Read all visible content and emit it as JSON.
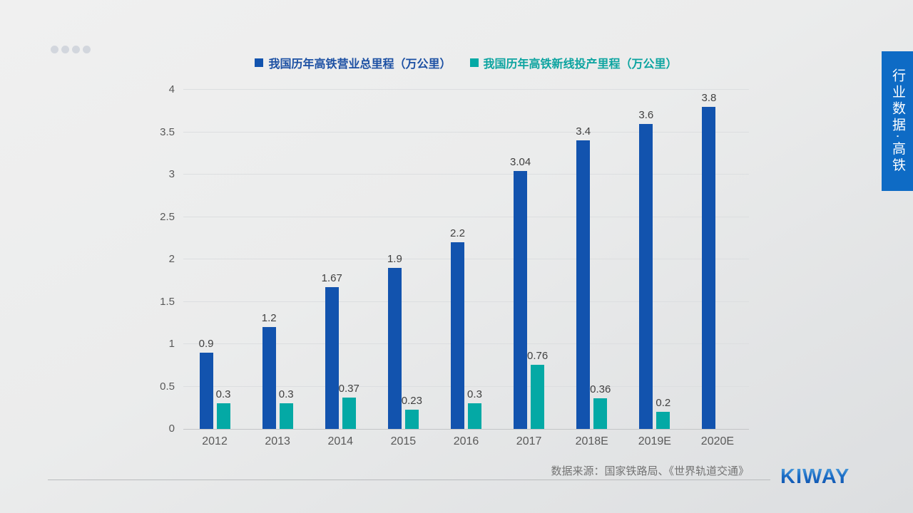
{
  "banner": {
    "text": "行业数据·高铁"
  },
  "footer": {
    "source": "数据来源：国家铁路局、《世界轨道交通》",
    "logo": "KIWAY"
  },
  "theme": {
    "primary_blue": "#1253ae",
    "teal": "#04a9a5",
    "banner_blue": "#0e6bc5",
    "legend_blue_text": "#1c50a3",
    "legend_teal_text": "#0ca4a0",
    "gridline": "#dcdee0",
    "axis_text": "#595959",
    "data_label_text": "#404040"
  },
  "chart_data": {
    "type": "bar",
    "title": "",
    "xlabel": "",
    "ylabel": "",
    "categories": [
      "2012",
      "2013",
      "2014",
      "2015",
      "2016",
      "2017",
      "2018E",
      "2019E",
      "2020E"
    ],
    "series": [
      {
        "name": "我国历年高铁营业总里程（万公里）",
        "color": "#1253ae",
        "values": [
          0.9,
          1.2,
          1.67,
          1.9,
          2.2,
          3.04,
          3.4,
          3.6,
          3.8
        ],
        "labels": [
          "0.9",
          "1.2",
          "1.67",
          "1.9",
          "2.2",
          "3.04",
          "3.4",
          "3.6",
          "3.8"
        ]
      },
      {
        "name": "我国历年高铁新线投产里程（万公里）",
        "color": "#04a9a5",
        "values": [
          0.3,
          0.3,
          0.37,
          0.23,
          0.3,
          0.76,
          0.36,
          0.2,
          null
        ],
        "labels": [
          "0.3",
          "0.3",
          "0.37",
          "0.23",
          "0.3",
          "0.76",
          "0.36",
          "0.2",
          ""
        ]
      }
    ],
    "ylim": [
      0,
      4
    ],
    "y_ticks": [
      0,
      0.5,
      1,
      1.5,
      2,
      2.5,
      3,
      3.5,
      4
    ],
    "grid": true,
    "legend_position": "top"
  }
}
